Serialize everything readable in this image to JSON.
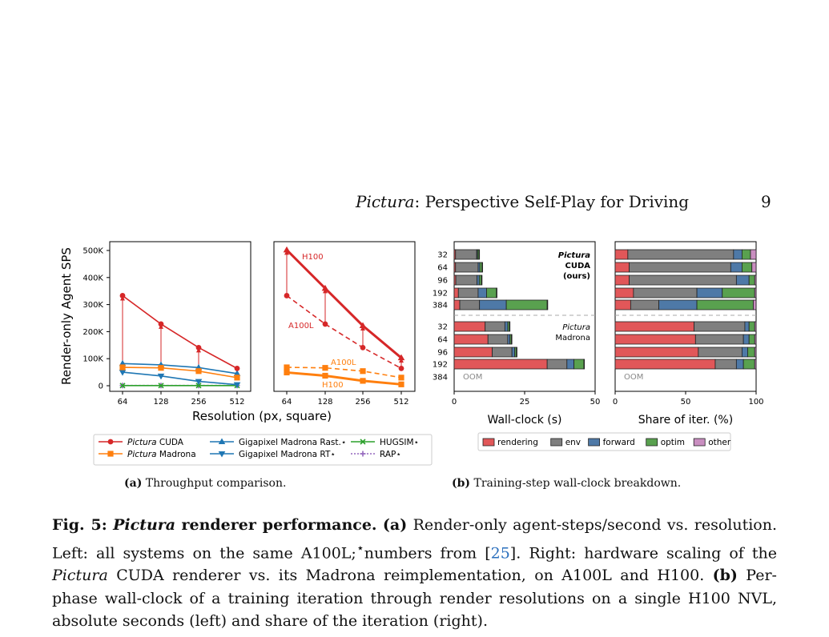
{
  "header": {
    "title_italic": "Pictura",
    "title_rest": ": Perspective Self-Play for Driving",
    "page_number": "9"
  },
  "figure_a": {
    "ylabel": "Render-only Agent SPS",
    "xlabel": "Resolution (px, square)",
    "subcaption_label": "(a)",
    "subcaption_text": "Throughput comparison.",
    "legend": [
      {
        "italic": "Pictura",
        "rest": " CUDA",
        "color": "#d62728",
        "marker": "circle",
        "dash": false
      },
      {
        "italic": "Pictura",
        "rest": " Madrona",
        "color": "#ff7f0e",
        "marker": "square",
        "dash": false
      },
      {
        "italic": "",
        "rest": "Gigapixel Madrona Rast.⋆",
        "color": "#1f77b4",
        "marker": "triangle-up",
        "dash": false
      },
      {
        "italic": "",
        "rest": "Gigapixel Madrona RT⋆",
        "color": "#1f77b4",
        "marker": "triangle-down",
        "dash": false
      },
      {
        "italic": "",
        "rest": "HUGSIM⋆",
        "color": "#2ca02c",
        "marker": "x",
        "dash": false
      },
      {
        "italic": "",
        "rest": "RAP⋆",
        "color": "#9467bd",
        "marker": "plus",
        "dash": true
      }
    ],
    "annotations_right": {
      "h100_red": "H100",
      "a100l_red": "A100L",
      "a100l_orange": "A100L",
      "h100_orange": "H100"
    }
  },
  "figure_b": {
    "xlabel_left": "Wall-clock (s)",
    "xlabel_right": "Share of iter. (%)",
    "subcaption_label": "(b)",
    "subcaption_text": "Training-step wall-clock breakdown.",
    "group1_label": [
      "Pictura",
      "CUDA",
      "(ours)"
    ],
    "group2_label": [
      "Pictura",
      "Madrona"
    ],
    "oom": "OOM",
    "legend": [
      {
        "name": "rendering",
        "color": "#e15759"
      },
      {
        "name": "env",
        "color": "#7f7f7f"
      },
      {
        "name": "forward",
        "color": "#4e79a7"
      },
      {
        "name": "optim",
        "color": "#59a14f"
      },
      {
        "name": "other",
        "color": "#c98ec0"
      }
    ]
  },
  "caption": {
    "fig_label": "Fig. 5:",
    "title_italic": "Pictura",
    "title_rest": "renderer performance.",
    "a_label": "(a)",
    "a_text": "Render-only agent-steps/second vs. resolution. Left: all systems on the same A100L;",
    "star_text": "numbers from",
    "citation": "25",
    "a_text2": "Right: hardware scaling of the",
    "pictura": "Pictura",
    "a_text3": "CUDA renderer vs. its Madrona reimplementation, on A100L and H100.",
    "b_label": "(b)",
    "b_text": "Per-phase wall-clock of a training iteration through render resolutions on a single H100 NVL, absolute seconds (left) and share of the iteration (right)."
  },
  "chart_data": [
    {
      "type": "line",
      "title": "",
      "xlabel": "Resolution (px, square)",
      "ylabel": "Render-only Agent SPS",
      "x": [
        64,
        128,
        256,
        512
      ],
      "x_scale": "log2",
      "ylim": [
        0,
        520000
      ],
      "yticks": [
        "0",
        "100K",
        "200K",
        "300K",
        "400K",
        "500K"
      ],
      "series": [
        {
          "name": "Pictura CUDA",
          "values": [
            333000,
            228000,
            141000,
            64000
          ]
        },
        {
          "name": "Pictura Madrona",
          "values": [
            68000,
            66000,
            54000,
            30000
          ]
        },
        {
          "name": "Gigapixel Madrona Rast.⋆",
          "values": [
            82000,
            77000,
            67000,
            45000
          ]
        },
        {
          "name": "Gigapixel Madrona RT⋆",
          "values": [
            50000,
            36000,
            16000,
            4000
          ]
        },
        {
          "name": "HUGSIM⋆",
          "values": [
            500,
            500,
            500,
            500
          ]
        },
        {
          "name": "RAP⋆",
          "values": [
            800,
            800,
            800,
            800
          ]
        }
      ],
      "gap_arrows": [
        {
          "x": 64,
          "from": 82000,
          "to": 333000
        },
        {
          "x": 128,
          "from": 77000,
          "to": 228000
        },
        {
          "x": 256,
          "from": 67000,
          "to": 141000
        }
      ],
      "grid": false
    },
    {
      "type": "line",
      "title": "",
      "x": [
        64,
        128,
        256,
        512
      ],
      "x_scale": "log2",
      "ylim": [
        0,
        520000
      ],
      "series": [
        {
          "name": "Pictura CUDA H100",
          "values": [
            502000,
            360000,
            222000,
            103000
          ]
        },
        {
          "name": "Pictura CUDA A100L",
          "values": [
            333000,
            228000,
            141000,
            64000
          ]
        },
        {
          "name": "Pictura Madrona A100L",
          "values": [
            68000,
            66000,
            54000,
            30000
          ]
        },
        {
          "name": "Pictura Madrona H100",
          "values": [
            49000,
            37000,
            18000,
            5000
          ]
        }
      ],
      "grid": false
    },
    {
      "type": "bar",
      "orientation": "horizontal-stacked",
      "xlabel": "Wall-clock (s)",
      "xlim": [
        0,
        50
      ],
      "xticks": [
        0,
        25,
        50
      ],
      "categories": [
        "32",
        "64",
        "96",
        "192",
        "384",
        "32",
        "64",
        "96",
        "192",
        "384"
      ],
      "series": [
        {
          "name": "rendering",
          "values": [
            0.5,
            0.5,
            0.6,
            1.5,
            2.0,
            11,
            12,
            13.5,
            33,
            null
          ]
        },
        {
          "name": "env",
          "values": [
            7.5,
            8,
            7.5,
            7,
            7,
            7,
            7,
            7,
            7,
            null
          ]
        },
        {
          "name": "forward",
          "values": [
            0.3,
            0.6,
            0.8,
            3,
            9.5,
            1,
            0.8,
            1,
            2.5,
            null
          ]
        },
        {
          "name": "optim",
          "values": [
            0.5,
            0.8,
            0.8,
            3.5,
            14.5,
            0.6,
            0.5,
            0.6,
            3.5,
            null
          ]
        },
        {
          "name": "other",
          "values": [
            0.2,
            0.2,
            0.2,
            0.2,
            0.2,
            0.2,
            0.2,
            0.2,
            0.2,
            null
          ]
        }
      ]
    },
    {
      "type": "bar",
      "orientation": "horizontal-stacked",
      "xlabel": "Share of iter. (%)",
      "xlim": [
        0,
        100
      ],
      "xticks": [
        0,
        50,
        100
      ],
      "categories": [
        "32",
        "64",
        "96",
        "192",
        "384",
        "32",
        "64",
        "96",
        "192",
        "384"
      ],
      "series": [
        {
          "name": "rendering",
          "values": [
            9,
            10,
            10,
            13,
            11,
            56,
            57,
            59,
            71,
            null
          ]
        },
        {
          "name": "env",
          "values": [
            75,
            72,
            76,
            45,
            20,
            36,
            34,
            31,
            15,
            null
          ]
        },
        {
          "name": "forward",
          "values": [
            6,
            8,
            9,
            18,
            27,
            3,
            4,
            4,
            5,
            null
          ]
        },
        {
          "name": "optim",
          "values": [
            6,
            7,
            4,
            23,
            40,
            4,
            4,
            5,
            8,
            null
          ]
        },
        {
          "name": "other",
          "values": [
            4,
            3,
            1,
            1,
            2,
            1,
            1,
            1,
            1,
            null
          ]
        }
      ]
    }
  ]
}
